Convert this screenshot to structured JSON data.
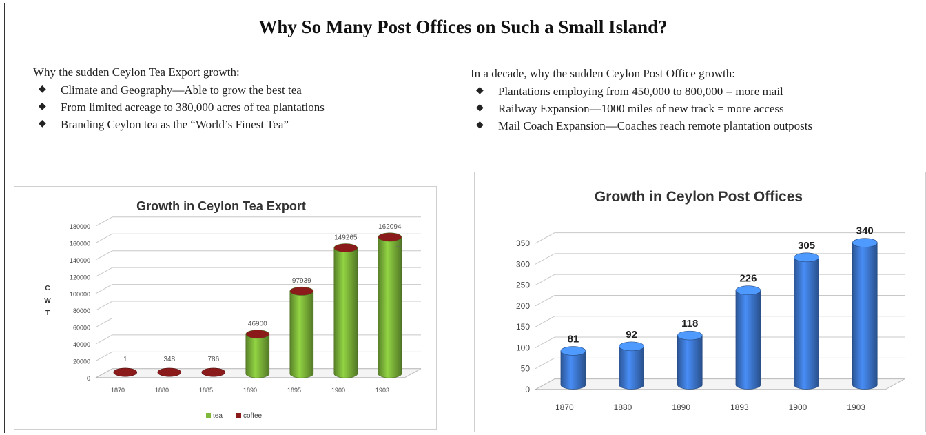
{
  "page": {
    "title": "Why So Many Post Offices on Such a Small Island?"
  },
  "left_list": {
    "intro": "Why the sudden Ceylon Tea Export growth:",
    "items": [
      "Climate and Geography—Able to grow the best tea",
      "From limited acreage to 380,000 acres of tea plantations",
      "Branding Ceylon tea as the “World’s Finest Tea”"
    ]
  },
  "right_list": {
    "intro": "In a decade, why the sudden Ceylon Post Office growth:",
    "items": [
      "Plantations employing from 450,000 to 800,000 = more mail",
      "Railway Expansion—1000 miles of new track = more access",
      "Mail Coach Expansion—Coaches reach remote plantation outposts"
    ]
  },
  "chart_data": [
    {
      "type": "bar",
      "title": "Growth in Ceylon Tea Export",
      "ylabel": "C W T",
      "xlabel": "",
      "categories": [
        "1870",
        "1880",
        "1885",
        "1890",
        "1895",
        "1900",
        "1903"
      ],
      "series": [
        {
          "name": "tea",
          "values": [
            1,
            348,
            786,
            46900,
            97939,
            149265,
            162094
          ],
          "color": "#7fb83a"
        },
        {
          "name": "coffee",
          "values": [
            1,
            348,
            786,
            0,
            0,
            0,
            0
          ],
          "color": "#8b1a1a"
        }
      ],
      "data_labels": [
        "1",
        "348",
        "786",
        "46900",
        "97939",
        "149265",
        "162094"
      ],
      "extra_annotation": "...",
      "yticks": [
        0,
        20000,
        40000,
        60000,
        80000,
        100000,
        120000,
        140000,
        160000,
        180000
      ],
      "ylim": [
        0,
        180000
      ],
      "grid": true,
      "legend_position": "bottom",
      "style": "3d-cylinder"
    },
    {
      "type": "bar",
      "title": "Growth in Ceylon Post Offices",
      "xlabel": "",
      "ylabel": "",
      "categories": [
        "1870",
        "1880",
        "1890",
        "1893",
        "1900",
        "1903"
      ],
      "values": [
        81,
        92,
        118,
        226,
        305,
        340
      ],
      "color": "#3f7bd6",
      "yticks": [
        0,
        50,
        100,
        150,
        200,
        250,
        300,
        350
      ],
      "ylim": [
        0,
        350
      ],
      "grid": true,
      "legend_position": "none",
      "style": "3d-cylinder"
    }
  ]
}
